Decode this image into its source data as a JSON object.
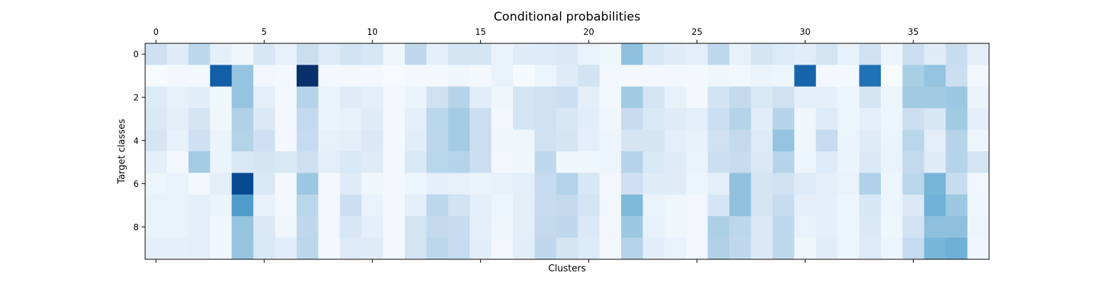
{
  "chart_data": {
    "type": "heatmap",
    "title": "Conditional probabilities",
    "xlabel": "Clusters",
    "ylabel": "Target classes",
    "x_tick_labels": [
      "0",
      "5",
      "10",
      "15",
      "20",
      "25",
      "30",
      "35"
    ],
    "x_tick_values": [
      0,
      5,
      10,
      15,
      20,
      25,
      30,
      35
    ],
    "y_tick_labels": [
      "0",
      "2",
      "4",
      "6",
      "8"
    ],
    "y_tick_values": [
      0,
      2,
      4,
      6,
      8
    ],
    "n_cols": 39,
    "n_rows": 10,
    "colormap": "Blues",
    "colormap_stops": [
      "#f7fbff",
      "#deebf7",
      "#c6dbef",
      "#9ecae1",
      "#6baed6",
      "#4292c6",
      "#2171b5",
      "#08519c",
      "#08306b"
    ],
    "values": [
      [
        0.21,
        0.12,
        0.28,
        0.09,
        0.04,
        0.16,
        0.08,
        0.23,
        0.13,
        0.19,
        0.16,
        0.04,
        0.27,
        0.09,
        0.17,
        0.17,
        0.07,
        0.12,
        0.13,
        0.14,
        0.07,
        0.04,
        0.42,
        0.16,
        0.12,
        0.1,
        0.27,
        0.08,
        0.17,
        0.13,
        0.11,
        0.18,
        0.08,
        0.2,
        0.05,
        0.23,
        0.12,
        0.24,
        0.1
      ],
      [
        0.01,
        0.02,
        0.02,
        0.82,
        0.4,
        0.03,
        0.02,
        1.0,
        0.02,
        0.02,
        0.02,
        0.01,
        0.02,
        0.02,
        0.04,
        0.02,
        0.07,
        0.01,
        0.05,
        0.12,
        0.19,
        0.02,
        0.02,
        0.02,
        0.02,
        0.02,
        0.04,
        0.03,
        0.06,
        0.05,
        0.8,
        0.02,
        0.02,
        0.75,
        0.01,
        0.34,
        0.4,
        0.22,
        0.03
      ],
      [
        0.13,
        0.08,
        0.11,
        0.04,
        0.4,
        0.1,
        0.02,
        0.3,
        0.06,
        0.12,
        0.1,
        0.02,
        0.06,
        0.2,
        0.3,
        0.11,
        0.04,
        0.17,
        0.2,
        0.22,
        0.09,
        0.03,
        0.37,
        0.18,
        0.08,
        0.03,
        0.19,
        0.26,
        0.15,
        0.2,
        0.09,
        0.09,
        0.05,
        0.17,
        0.05,
        0.37,
        0.37,
        0.38,
        0.06
      ],
      [
        0.15,
        0.1,
        0.17,
        0.04,
        0.32,
        0.14,
        0.02,
        0.26,
        0.06,
        0.08,
        0.12,
        0.02,
        0.09,
        0.29,
        0.36,
        0.22,
        0.03,
        0.17,
        0.2,
        0.16,
        0.11,
        0.04,
        0.24,
        0.15,
        0.12,
        0.09,
        0.23,
        0.31,
        0.11,
        0.3,
        0.04,
        0.13,
        0.05,
        0.09,
        0.05,
        0.22,
        0.16,
        0.37,
        0.09
      ],
      [
        0.17,
        0.08,
        0.21,
        0.06,
        0.31,
        0.21,
        0.02,
        0.25,
        0.08,
        0.1,
        0.14,
        0.02,
        0.11,
        0.28,
        0.36,
        0.23,
        0.04,
        0.04,
        0.2,
        0.17,
        0.1,
        0.05,
        0.17,
        0.17,
        0.1,
        0.08,
        0.2,
        0.26,
        0.13,
        0.4,
        0.04,
        0.25,
        0.06,
        0.12,
        0.06,
        0.29,
        0.1,
        0.3,
        0.05
      ],
      [
        0.09,
        0.03,
        0.36,
        0.06,
        0.15,
        0.17,
        0.15,
        0.21,
        0.1,
        0.15,
        0.12,
        0.02,
        0.15,
        0.29,
        0.3,
        0.22,
        0.03,
        0.04,
        0.27,
        0.04,
        0.04,
        0.05,
        0.3,
        0.15,
        0.12,
        0.07,
        0.22,
        0.24,
        0.14,
        0.3,
        0.05,
        0.13,
        0.06,
        0.14,
        0.07,
        0.26,
        0.12,
        0.3,
        0.18
      ],
      [
        0.05,
        0.07,
        0.03,
        0.1,
        0.9,
        0.15,
        0.02,
        0.38,
        0.02,
        0.12,
        0.04,
        0.02,
        0.05,
        0.09,
        0.08,
        0.06,
        0.08,
        0.1,
        0.25,
        0.31,
        0.16,
        0.03,
        0.21,
        0.12,
        0.12,
        0.05,
        0.1,
        0.41,
        0.17,
        0.2,
        0.13,
        0.1,
        0.07,
        0.32,
        0.05,
        0.29,
        0.47,
        0.24,
        0.03
      ],
      [
        0.07,
        0.07,
        0.09,
        0.06,
        0.58,
        0.08,
        0.03,
        0.29,
        0.03,
        0.22,
        0.07,
        0.02,
        0.1,
        0.28,
        0.19,
        0.09,
        0.05,
        0.1,
        0.25,
        0.26,
        0.18,
        0.03,
        0.45,
        0.07,
        0.04,
        0.03,
        0.17,
        0.41,
        0.17,
        0.24,
        0.09,
        0.09,
        0.05,
        0.16,
        0.05,
        0.14,
        0.48,
        0.38,
        0.04
      ],
      [
        0.07,
        0.07,
        0.1,
        0.04,
        0.4,
        0.14,
        0.04,
        0.27,
        0.03,
        0.16,
        0.09,
        0.02,
        0.18,
        0.26,
        0.24,
        0.1,
        0.04,
        0.1,
        0.26,
        0.27,
        0.14,
        0.03,
        0.38,
        0.08,
        0.04,
        0.03,
        0.33,
        0.28,
        0.14,
        0.27,
        0.07,
        0.09,
        0.05,
        0.14,
        0.04,
        0.19,
        0.42,
        0.42,
        0.05
      ],
      [
        0.09,
        0.09,
        0.1,
        0.04,
        0.4,
        0.15,
        0.11,
        0.28,
        0.02,
        0.13,
        0.12,
        0.02,
        0.18,
        0.28,
        0.25,
        0.11,
        0.03,
        0.11,
        0.27,
        0.17,
        0.13,
        0.03,
        0.3,
        0.11,
        0.07,
        0.03,
        0.32,
        0.27,
        0.14,
        0.27,
        0.04,
        0.11,
        0.05,
        0.13,
        0.05,
        0.25,
        0.47,
        0.49,
        0.04
      ]
    ]
  }
}
